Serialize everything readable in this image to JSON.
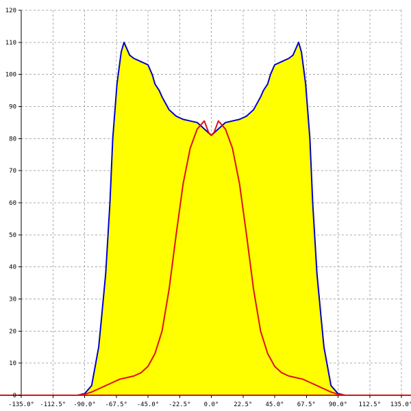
{
  "chart_data": {
    "type": "area",
    "title": "",
    "xlabel": "",
    "ylabel": "",
    "xlim": [
      -135,
      135
    ],
    "ylim": [
      0,
      120
    ],
    "grid": true,
    "x_ticks": [
      -135,
      -112.5,
      -90,
      -67.5,
      -45,
      -22.5,
      0,
      22.5,
      45,
      67.5,
      90,
      112.5,
      135
    ],
    "x_tick_labels": [
      "-135.0°",
      "-112.5°",
      "-90.0°",
      "-67.5°",
      "-45.0°",
      "-22.5°",
      "0.0°",
      "22.5°",
      "45.0°",
      "67.5°",
      "90.0°",
      "112.5°",
      "135.0°"
    ],
    "y_ticks": [
      0,
      10,
      20,
      30,
      40,
      50,
      60,
      70,
      80,
      90,
      100,
      110,
      120
    ],
    "y_tick_labels": [
      "0",
      "10",
      "20",
      "30",
      "40",
      "50",
      "60",
      "70",
      "80",
      "90",
      "100",
      "110",
      "120"
    ],
    "series": [
      {
        "color": "#0000cc",
        "fill": "#ffff00",
        "x": [
          -135,
          -95,
          -90,
          -85,
          -80,
          -78,
          -75,
          -72,
          -70,
          -67,
          -64,
          -62,
          -60,
          -58,
          -55,
          -50,
          -45,
          -42,
          -40,
          -37,
          -35,
          -30,
          -25,
          -20,
          -15,
          -10,
          -5,
          0,
          5,
          10,
          15,
          20,
          25,
          30,
          35,
          37,
          40,
          42,
          45,
          50,
          55,
          58,
          60,
          62,
          64,
          67,
          70,
          72,
          75,
          78,
          80,
          85,
          90,
          95,
          135
        ],
        "y": [
          0,
          0,
          0.5,
          3,
          15,
          24,
          38,
          60,
          80,
          97,
          107,
          110,
          108,
          106,
          105,
          104,
          103,
          100,
          97,
          95,
          93,
          89,
          87,
          86,
          85.5,
          85,
          83,
          81,
          83,
          85,
          85.5,
          86,
          87,
          89,
          93,
          95,
          97,
          100,
          103,
          104,
          105,
          106,
          108,
          110,
          107,
          97,
          80,
          60,
          38,
          24,
          15,
          3,
          0.5,
          0,
          0
        ]
      },
      {
        "color": "#dd1111",
        "fill": "none",
        "x": [
          -135,
          -95,
          -90,
          -85,
          -80,
          -75,
          -70,
          -65,
          -60,
          -55,
          -50,
          -45,
          -40,
          -35,
          -30,
          -25,
          -20,
          -15,
          -10,
          -5,
          -2,
          0,
          2,
          5,
          10,
          15,
          20,
          25,
          30,
          35,
          40,
          45,
          50,
          55,
          60,
          65,
          70,
          75,
          80,
          85,
          90,
          95,
          135
        ],
        "y": [
          0,
          0,
          0.3,
          1,
          2,
          3,
          4,
          5,
          5.5,
          6,
          7,
          9,
          13,
          20,
          33,
          50,
          66,
          77,
          83,
          85.5,
          82,
          81,
          82,
          85.5,
          83,
          77,
          66,
          50,
          33,
          20,
          13,
          9,
          7,
          6,
          5.5,
          5,
          4,
          3,
          2,
          1,
          0.3,
          0,
          0
        ]
      }
    ]
  }
}
